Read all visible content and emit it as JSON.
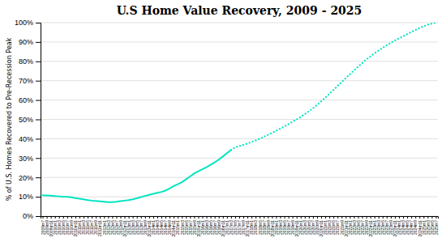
{
  "chart_data": {
    "type": "line",
    "title": "U.S Home Value Recovery, 2009 - 2025",
    "y_label": "% of U.S. Homes Recovered to Pre-Recession Peak",
    "categories": [
      "2009m7",
      "2009m9",
      "2009m11",
      "2010m1",
      "2010m3",
      "2010m5",
      "2010m7",
      "2010m9",
      "2010m11",
      "2011m1",
      "2011m3",
      "2011m5",
      "2011m7",
      "2011m9",
      "2011m11",
      "2012m1",
      "2012m3",
      "2012m5",
      "2012m7",
      "2012m9",
      "2012m11",
      "2013m1",
      "2013m3",
      "2013m5",
      "2013m7",
      "2013m9",
      "2013m11",
      "2014m1",
      "2014m3",
      "2014m5",
      "2014m7",
      "2014m9",
      "2014m11",
      "2015m1",
      "2015m3",
      "2015m5",
      "2015m7",
      "2015m9",
      "2015m11",
      "2016m1",
      "2016m3",
      "2016m5",
      "2016m7",
      "2016m9",
      "2016m11",
      "2017m1",
      "2017m3",
      "2017m5",
      "2017m7",
      "2017m9",
      "2017m11",
      "2018m1",
      "2018m3",
      "2018m5",
      "2018m7",
      "2018m9",
      "2018m11",
      "2019m1",
      "2019m3",
      "2019m5",
      "2019m7",
      "2019m9",
      "2019m11",
      "2020m1",
      "2020m3",
      "2020m5",
      "2020m7",
      "2020m9",
      "2020m11",
      "2021m1",
      "2021m3",
      "2021m5",
      "2021m7",
      "2021m9",
      "2021m11",
      "2022m1",
      "2022m3",
      "2022m5",
      "2022m7",
      "2022m9",
      "2022m11",
      "2023m1",
      "2023m3",
      "2023m5",
      "2023m7",
      "2023m9",
      "2023m11",
      "2024m1",
      "2024m3",
      "2024m5",
      "2024m7",
      "2024m9",
      "2024m11",
      "2025m1",
      "2025m3",
      "2025m5",
      "2025m7"
    ],
    "series": [
      {
        "color": "#00e5c0",
        "line_style": "solid",
        "values": [
          0.108,
          0.107,
          0.106,
          0.104,
          0.102,
          0.1,
          0.099,
          0.097,
          0.093,
          0.09,
          0.087,
          0.083,
          0.08,
          0.078,
          0.076,
          0.074,
          0.072,
          0.072,
          0.074,
          0.077,
          0.08,
          0.083,
          0.087,
          0.092,
          0.098,
          0.104,
          0.11,
          0.115,
          0.12,
          0.125,
          0.132,
          0.143,
          0.155,
          0.165,
          0.175,
          0.19,
          0.205,
          0.22,
          0.232,
          0.242,
          0.253,
          0.265,
          0.278,
          0.292,
          0.308,
          0.325,
          0.342,
          null,
          null,
          null,
          null,
          null,
          null,
          null,
          null,
          null,
          null,
          null,
          null,
          null,
          null,
          null,
          null,
          null,
          null,
          null,
          null,
          null,
          null,
          null,
          null,
          null,
          null,
          null,
          null,
          null,
          null,
          null,
          null,
          null,
          null,
          null,
          null,
          null,
          null,
          null,
          null,
          null,
          null,
          null,
          null,
          null,
          null,
          null,
          null,
          null,
          null
        ]
      },
      {
        "color": "#00e5c0",
        "line_style": "dotted",
        "values": [
          null,
          null,
          null,
          null,
          null,
          null,
          null,
          null,
          null,
          null,
          null,
          null,
          null,
          null,
          null,
          null,
          null,
          null,
          null,
          null,
          null,
          null,
          null,
          null,
          null,
          null,
          null,
          null,
          null,
          null,
          null,
          null,
          null,
          null,
          null,
          null,
          null,
          null,
          null,
          null,
          null,
          null,
          null,
          null,
          null,
          null,
          0.342,
          0.355,
          0.362,
          0.368,
          0.375,
          0.383,
          0.391,
          0.4,
          0.41,
          0.42,
          0.43,
          0.441,
          0.452,
          0.463,
          0.475,
          0.488,
          0.5,
          0.513,
          0.527,
          0.542,
          0.558,
          0.575,
          0.593,
          0.612,
          0.632,
          0.652,
          0.673,
          0.693,
          0.713,
          0.733,
          0.753,
          0.772,
          0.791,
          0.809,
          0.825,
          0.841,
          0.856,
          0.87,
          0.883,
          0.896,
          0.908,
          0.919,
          0.93,
          0.941,
          0.952,
          0.962,
          0.972,
          0.981,
          0.989,
          0.995,
          1.0
        ]
      }
    ],
    "ylim": [
      0,
      1.0
    ],
    "yticks": [
      {
        "value": 0,
        "label": "0%"
      },
      {
        "value": 0.1,
        "label": "10%"
      },
      {
        "value": 0.2,
        "label": "20%"
      },
      {
        "value": 0.3,
        "label": "30%"
      },
      {
        "value": 0.4,
        "label": "40%"
      },
      {
        "value": 0.5,
        "label": "50%"
      },
      {
        "value": 0.6,
        "label": "60%"
      },
      {
        "value": 0.7,
        "label": "70%"
      },
      {
        "value": 0.8,
        "label": "80%"
      },
      {
        "value": 0.9,
        "label": "90%"
      },
      {
        "value": 1.0,
        "label": "100%"
      }
    ],
    "grid": true
  }
}
